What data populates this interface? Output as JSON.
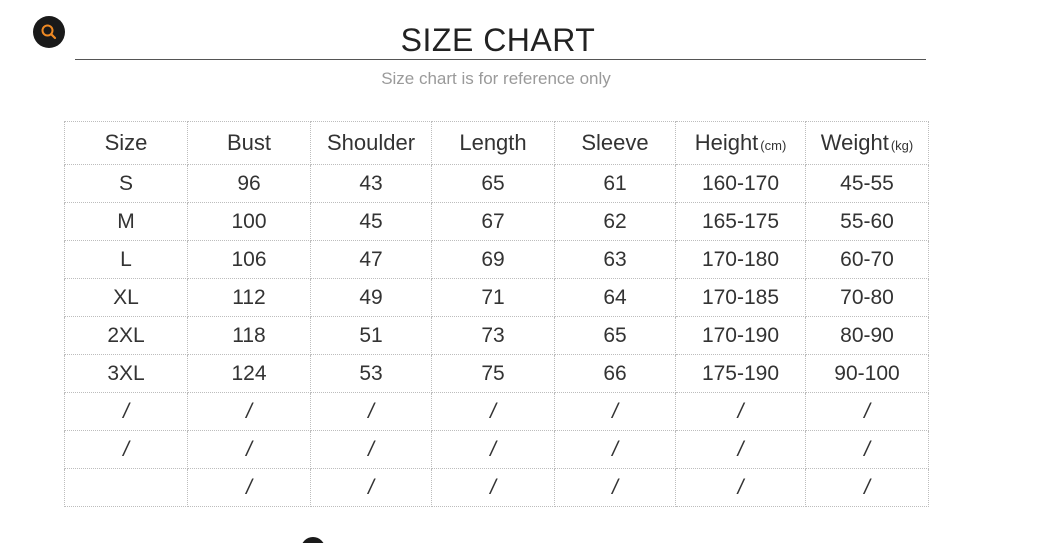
{
  "header": {
    "title": "SIZE CHART",
    "subtitle": "Size chart is for reference only"
  },
  "icons": {
    "zoom": "search-icon"
  },
  "table": {
    "columns": [
      {
        "label": "Size",
        "unit": ""
      },
      {
        "label": "Bust",
        "unit": ""
      },
      {
        "label": "Shoulder",
        "unit": ""
      },
      {
        "label": "Length",
        "unit": ""
      },
      {
        "label": "Sleeve",
        "unit": ""
      },
      {
        "label": "Height",
        "unit": "(cm)"
      },
      {
        "label": "Weight",
        "unit": "(kg)"
      }
    ],
    "rows": [
      [
        "S",
        "96",
        "43",
        "65",
        "61",
        "160-170",
        "45-55"
      ],
      [
        "M",
        "100",
        "45",
        "67",
        "62",
        "165-175",
        "55-60"
      ],
      [
        "L",
        "106",
        "47",
        "69",
        "63",
        "170-180",
        "60-70"
      ],
      [
        "XL",
        "112",
        "49",
        "71",
        "64",
        "170-185",
        "70-80"
      ],
      [
        "2XL",
        "118",
        "51",
        "73",
        "65",
        "170-190",
        "80-90"
      ],
      [
        "3XL",
        "124",
        "53",
        "75",
        "66",
        "175-190",
        "90-100"
      ],
      [
        "/",
        "/",
        "/",
        "/",
        "/",
        "/",
        "/"
      ],
      [
        "/",
        "/",
        "/",
        "/",
        "/",
        "/",
        "/"
      ],
      [
        "",
        "/",
        "/",
        "/",
        "/",
        "/",
        "/"
      ]
    ]
  },
  "colors": {
    "zoom_button_bg": "#1a1a1a",
    "zoom_icon": "#f08a24"
  }
}
